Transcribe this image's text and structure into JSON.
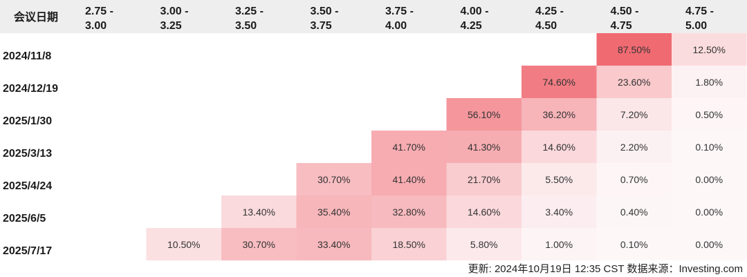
{
  "chart_data": {
    "type": "heatmap",
    "corner_label": "会议日期",
    "columns": [
      [
        "2.75 -",
        "3.00"
      ],
      [
        "3.00 -",
        "3.25"
      ],
      [
        "3.25 -",
        "3.50"
      ],
      [
        "3.50 -",
        "3.75"
      ],
      [
        "3.75 -",
        "4.00"
      ],
      [
        "4.00 -",
        "4.25"
      ],
      [
        "4.25 -",
        "4.50"
      ],
      [
        "4.50 -",
        "4.75"
      ],
      [
        "4.75 -",
        "5.00"
      ]
    ],
    "rows": [
      "2024/11/8",
      "2024/12/19",
      "2025/1/30",
      "2025/3/13",
      "2025/4/24",
      "2025/6/5",
      "2025/7/17"
    ],
    "values": [
      [
        null,
        null,
        null,
        null,
        null,
        null,
        null,
        87.5,
        12.5
      ],
      [
        null,
        null,
        null,
        null,
        null,
        null,
        74.6,
        23.6,
        1.8
      ],
      [
        null,
        null,
        null,
        null,
        null,
        56.1,
        36.2,
        7.2,
        0.5
      ],
      [
        null,
        null,
        null,
        null,
        41.7,
        41.3,
        14.6,
        2.2,
        0.1
      ],
      [
        null,
        null,
        null,
        30.7,
        41.4,
        21.7,
        5.5,
        0.7,
        0.0
      ],
      [
        null,
        null,
        13.4,
        35.4,
        32.8,
        14.6,
        3.4,
        0.4,
        0.0
      ],
      [
        null,
        10.5,
        30.7,
        33.4,
        18.5,
        5.8,
        1.0,
        0.1,
        0.0
      ]
    ],
    "value_suffix": "%",
    "colors": {
      "header_bg": "#eeeeee",
      "high": "#f06a72",
      "low": "#fdf7f8"
    }
  },
  "footer": {
    "text": "更新: 2024年10月19日 12:35 CST 数据来源：Investing.com"
  }
}
